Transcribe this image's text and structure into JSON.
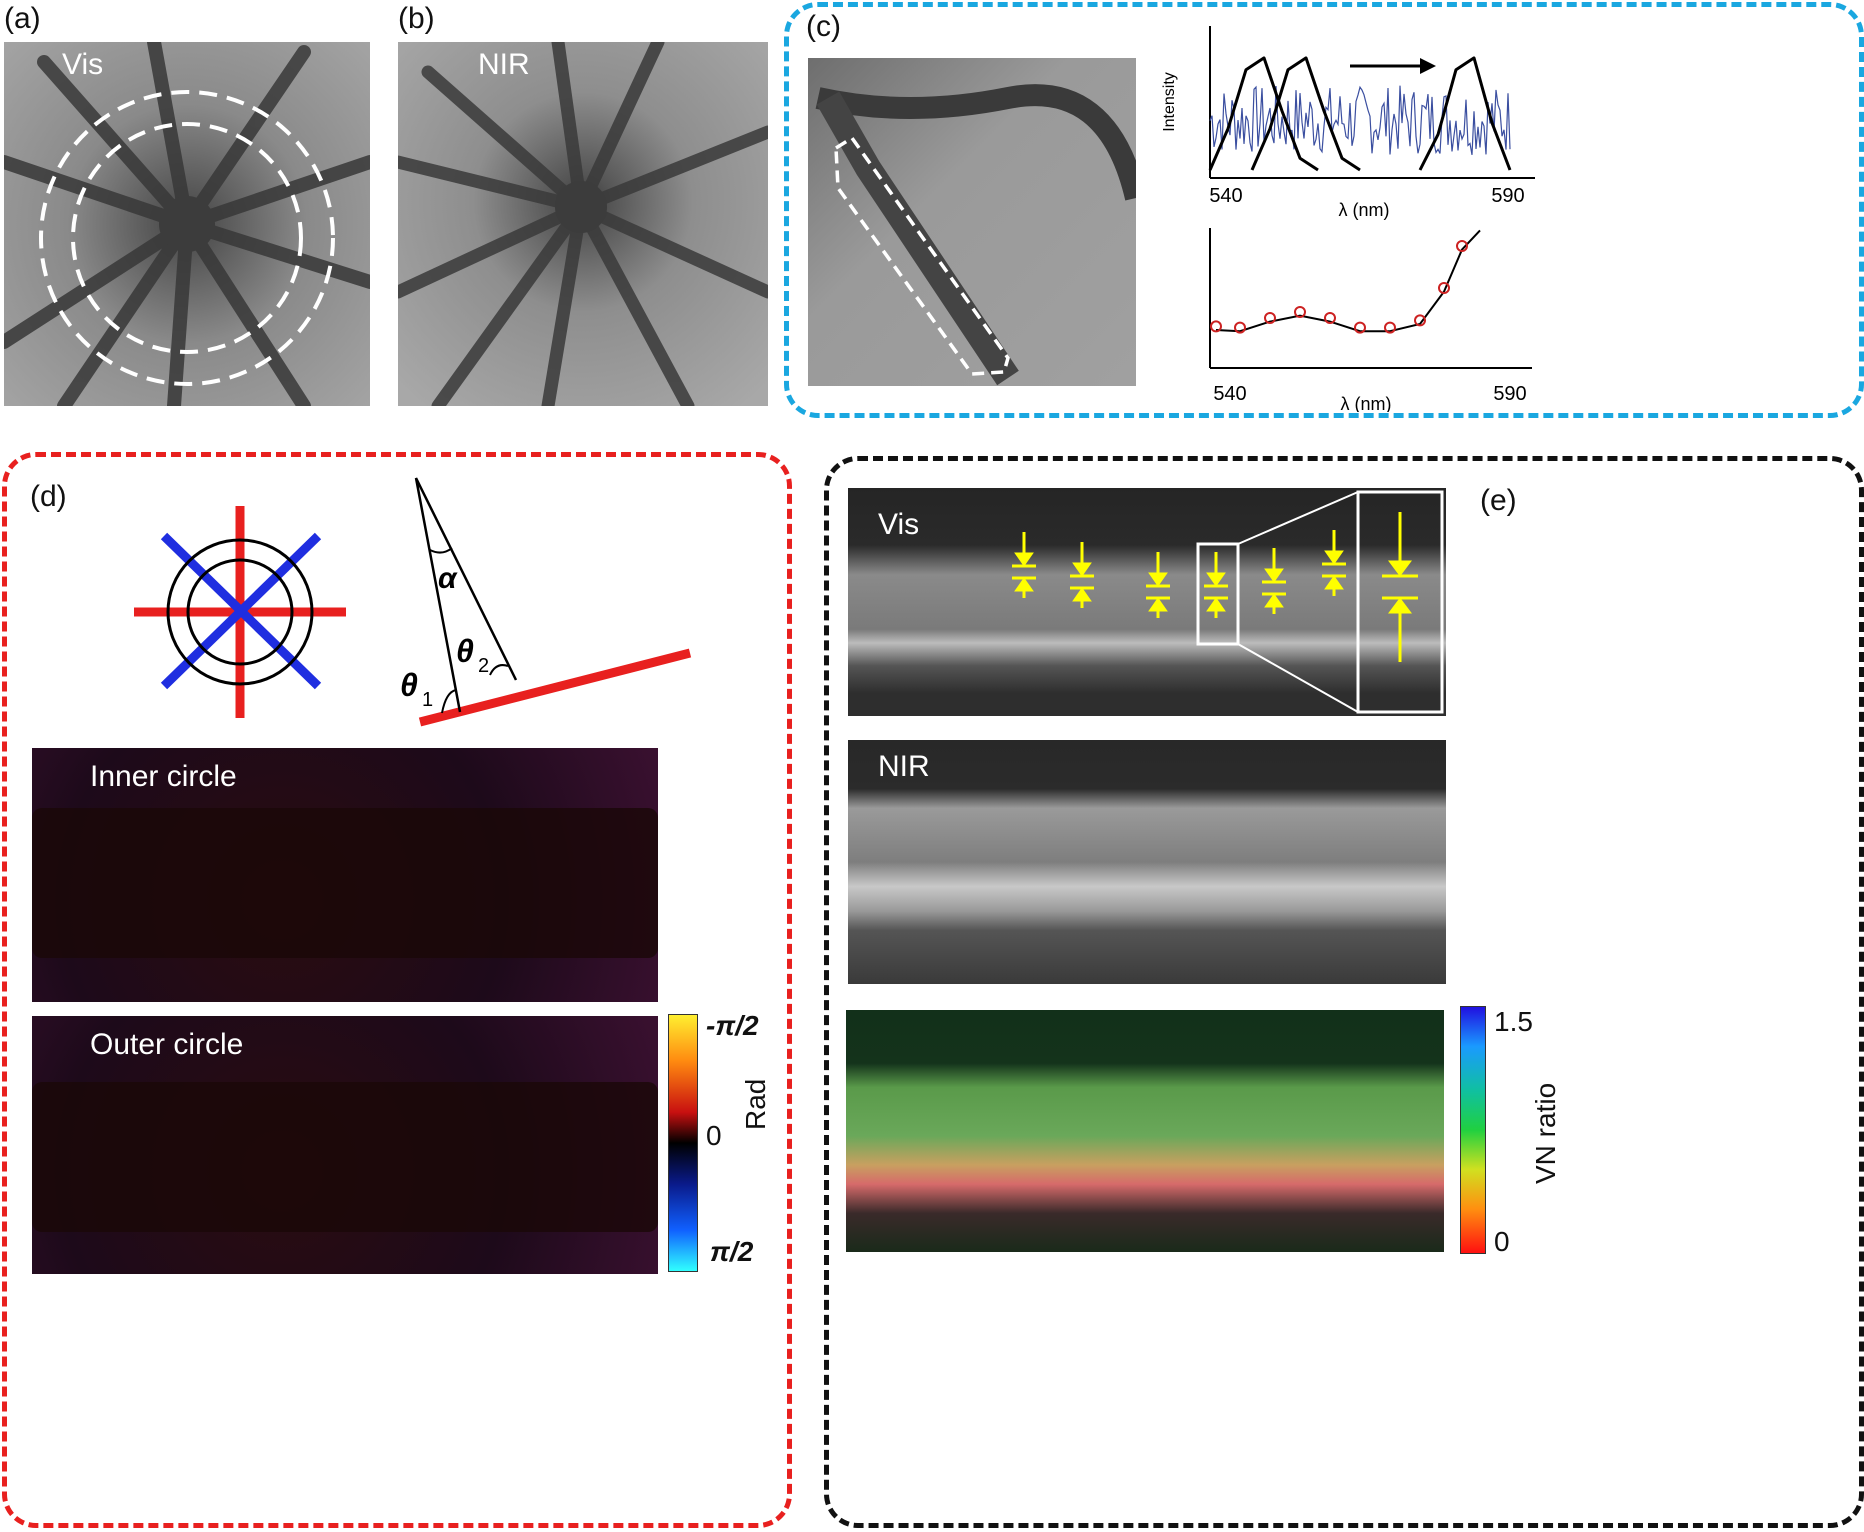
{
  "figure": {
    "panel_labels": {
      "a": "(a)",
      "b": "(b)",
      "c": "(c)",
      "d": "(d)",
      "e": "(e)"
    },
    "panel_a": {
      "image_label": "Vis"
    },
    "panel_b": {
      "image_label": "NIR"
    },
    "panel_c": {
      "spectrum_plot": {
        "ylabel": "Intensity",
        "xlabel": "λ (nm)",
        "x_ticks": [
          "540",
          "590"
        ]
      },
      "fit_plot": {
        "xlabel": "λ (nm)",
        "x_ticks": [
          "540",
          "590"
        ]
      }
    },
    "panel_d": {
      "angle_labels": {
        "alpha": "α",
        "theta1": "θ",
        "theta1_sub": "1",
        "theta2": "θ",
        "theta2_sub": "2"
      },
      "inner_label": "Inner circle",
      "outer_label": "Outer circle",
      "colorbar": {
        "top": "-π/2",
        "mid": "0",
        "bottom": "π/2",
        "title": "Rad"
      }
    },
    "panel_e": {
      "vis_label": "Vis",
      "nir_label": "NIR",
      "colorbar": {
        "top": "1.5",
        "bottom": "0",
        "title": "VN ratio"
      }
    },
    "colors": {
      "box_c": "#1aa7e0",
      "box_d": "#e8201f",
      "box_e": "#111111",
      "marker": "#ffff00",
      "spectrum": "#3b4fa0",
      "fit_points": "#cc2222"
    }
  },
  "chart_data": [
    {
      "type": "line",
      "xlabel": "λ (nm)",
      "ylabel": "Intensity",
      "xlim": [
        540,
        590
      ],
      "series": [
        {
          "x": [
            540,
            543,
            546,
            549,
            552,
            555,
            558
          ],
          "values": [
            0,
            0.35,
            0.85,
            0.95,
            0.5,
            0.1,
            0
          ]
        },
        {
          "x": [
            547,
            550,
            553,
            556,
            559,
            562,
            565
          ],
          "values": [
            0,
            0.35,
            0.85,
            0.95,
            0.5,
            0.1,
            0
          ]
        },
        {
          "x": [
            575,
            578,
            581,
            584,
            587,
            590
          ],
          "values": [
            0,
            0.3,
            0.85,
            0.95,
            0.4,
            0
          ]
        }
      ]
    },
    {
      "type": "scatter",
      "xlabel": "λ (nm)",
      "xlim": [
        540,
        590
      ],
      "x": [
        541,
        545,
        550,
        555,
        560,
        565,
        570,
        575,
        579,
        582
      ],
      "values": [
        0.28,
        0.27,
        0.35,
        0.4,
        0.35,
        0.27,
        0.27,
        0.33,
        0.6,
        0.95
      ]
    }
  ]
}
